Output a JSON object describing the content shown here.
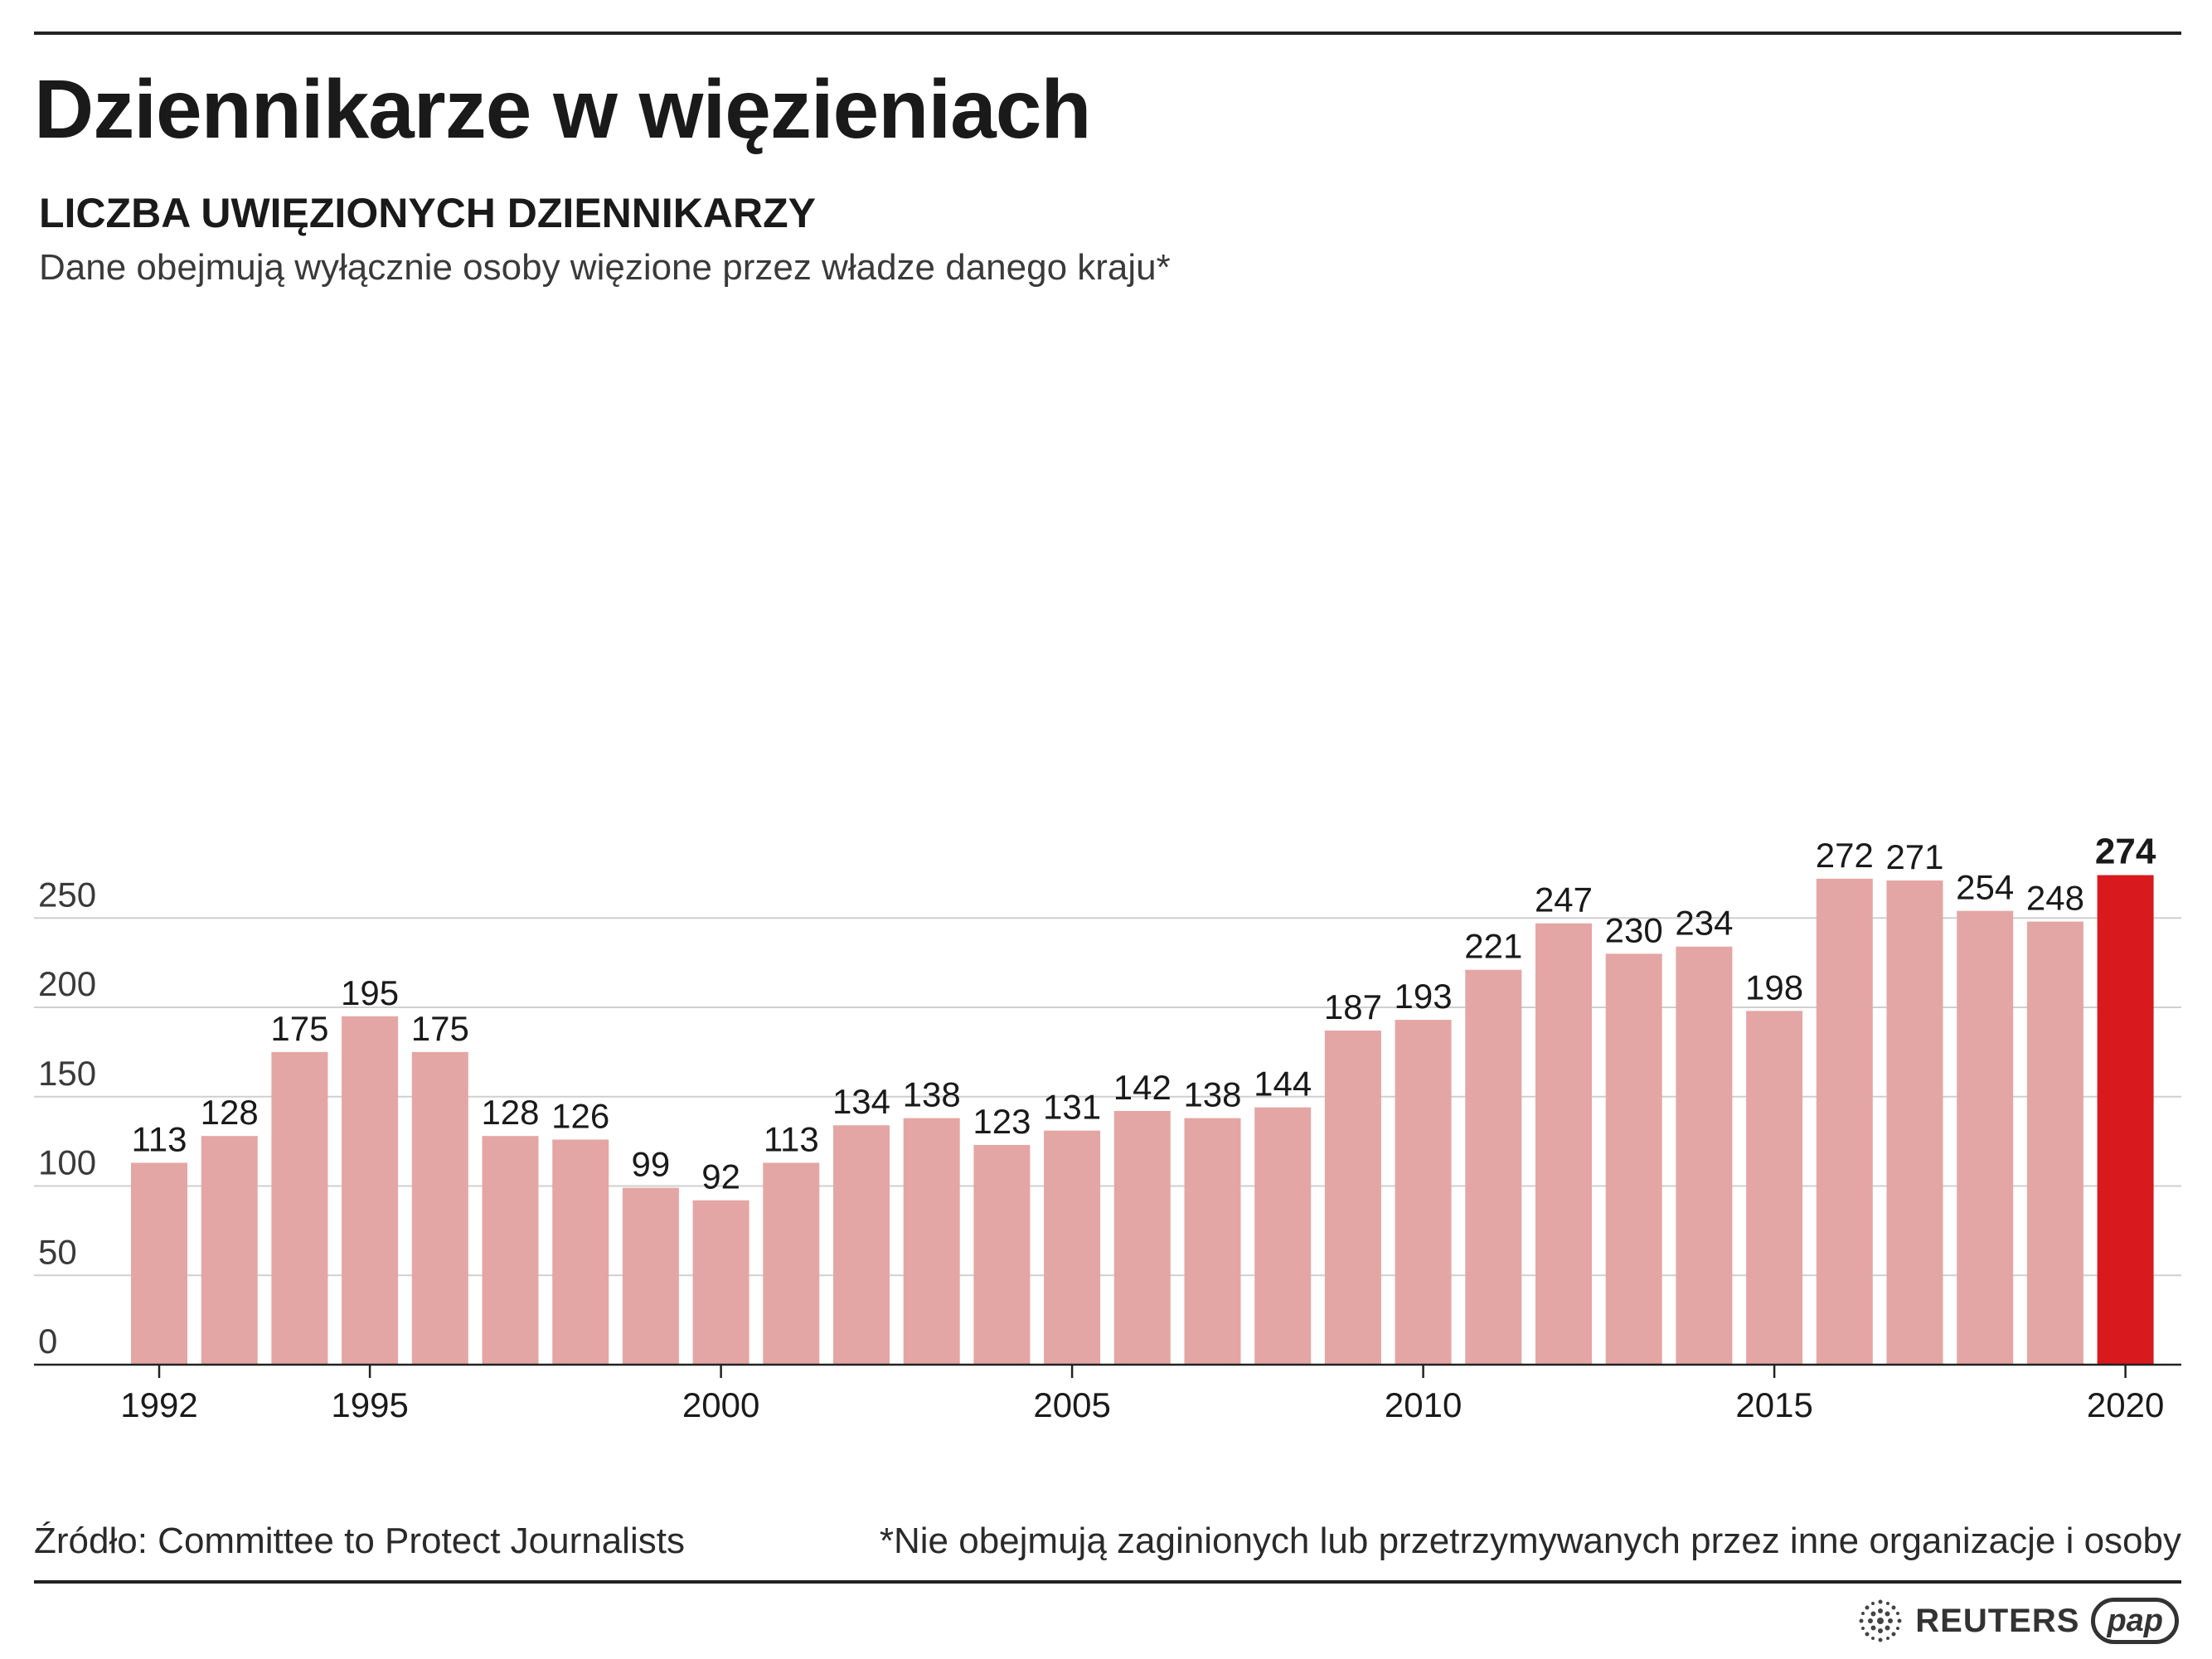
{
  "header": {
    "title": "Dziennikarze w więzieniach",
    "subtitle": "LICZBA UWIĘZIONYCH DZIENNIKARZY",
    "note": "Dane obejmują wyłącznie osoby więzione przez władze danego kraju*"
  },
  "footer": {
    "source": "Źródło: Committee to Protect Journalists",
    "footnote": "*Nie obejmują zaginionych lub przetrzymywanych przez inne organizacje i osoby"
  },
  "logos": {
    "reuters": "REUTERS",
    "pap": "pap"
  },
  "colors": {
    "bar": "#e4a6a4",
    "highlight": "#d8191e",
    "grid": "#cfcfcf",
    "axis": "#222222"
  },
  "chart_data": {
    "type": "bar",
    "title": "LICZBA UWIĘZIONYCH DZIENNIKARZY",
    "xlabel": "",
    "ylabel": "",
    "categories": [
      1992,
      1993,
      1994,
      1995,
      1996,
      1997,
      1998,
      1999,
      2000,
      2001,
      2002,
      2003,
      2004,
      2005,
      2006,
      2007,
      2008,
      2009,
      2010,
      2011,
      2012,
      2013,
      2014,
      2015,
      2016,
      2017,
      2018,
      2019,
      2020
    ],
    "values": [
      113,
      128,
      175,
      195,
      175,
      128,
      126,
      99,
      92,
      113,
      134,
      138,
      123,
      131,
      142,
      138,
      144,
      187,
      193,
      221,
      247,
      230,
      234,
      198,
      272,
      271,
      254,
      248,
      274
    ],
    "highlight": [
      2020
    ],
    "ylim": [
      0,
      274
    ],
    "yticks": [
      0,
      50,
      100,
      150,
      200,
      250
    ],
    "xtick_labels": [
      1992,
      1995,
      2000,
      2005,
      2010,
      2015,
      2020
    ],
    "grid": true
  }
}
